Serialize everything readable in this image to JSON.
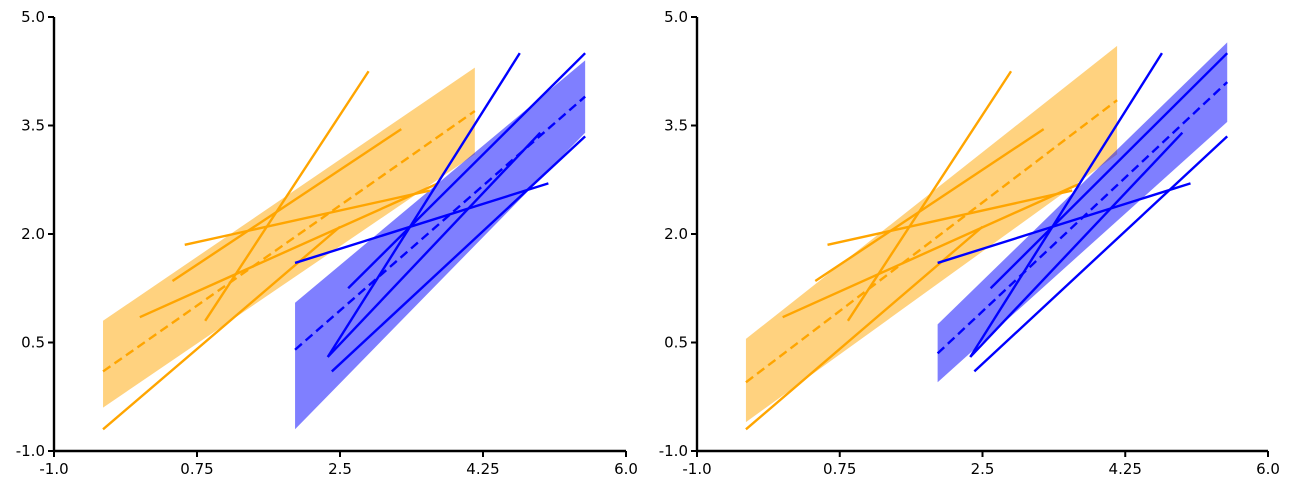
{
  "colors": {
    "orange": "#FFA500",
    "blue": "#0000FF",
    "axis": "#000000"
  },
  "chart_data": [
    {
      "type": "line",
      "title": "",
      "xlabel": "",
      "ylabel": "",
      "xlim": [
        -1.0,
        6.0
      ],
      "ylim": [
        -1.0,
        5.0
      ],
      "xticks": [
        -1.0,
        0.75,
        2.5,
        4.25,
        6.0
      ],
      "yticks": [
        -1.0,
        0.5,
        2.0,
        3.5,
        5.0
      ],
      "xtick_labels": [
        "-1.0",
        "0.75",
        "2.5",
        "4.25",
        "6.0"
      ],
      "ytick_labels": [
        "-1.0",
        "0.5",
        "2.0",
        "3.5",
        "5.0"
      ],
      "grid": false,
      "groups": [
        {
          "color": "orange",
          "band": {
            "x": [
              -0.4,
              4.15
            ],
            "upper": [
              0.8,
              4.3
            ],
            "lower": [
              -0.4,
              3.1
            ]
          },
          "mean": {
            "x": [
              -0.4,
              4.15
            ],
            "y": [
              0.1,
              3.7
            ]
          },
          "lines": [
            {
              "x": [
                -0.4,
                2.5
              ],
              "y": [
                -0.7,
                2.1
              ]
            },
            {
              "x": [
                0.05,
                3.7
              ],
              "y": [
                0.85,
                2.7
              ]
            },
            {
              "x": [
                0.45,
                3.25
              ],
              "y": [
                1.35,
                3.45
              ]
            },
            {
              "x": [
                0.6,
                3.6
              ],
              "y": [
                1.85,
                2.6
              ]
            },
            {
              "x": [
                0.85,
                2.85
              ],
              "y": [
                0.8,
                4.25
              ]
            }
          ]
        },
        {
          "color": "blue",
          "band": {
            "x": [
              1.95,
              5.5
            ],
            "upper": [
              1.05,
              4.4
            ],
            "lower": [
              -0.7,
              3.4
            ]
          },
          "mean": {
            "x": [
              1.95,
              5.5
            ],
            "y": [
              0.4,
              3.9
            ]
          },
          "lines": [
            {
              "x": [
                1.95,
                5.05
              ],
              "y": [
                1.6,
                2.7
              ]
            },
            {
              "x": [
                2.35,
                4.95
              ],
              "y": [
                0.3,
                3.4
              ]
            },
            {
              "x": [
                2.4,
                5.5
              ],
              "y": [
                0.1,
                3.35
              ]
            },
            {
              "x": [
                2.6,
                5.5
              ],
              "y": [
                1.25,
                4.5
              ]
            },
            {
              "x": [
                2.35,
                4.7
              ],
              "y": [
                0.3,
                4.5
              ]
            }
          ]
        }
      ]
    },
    {
      "type": "line",
      "title": "",
      "xlabel": "",
      "ylabel": "",
      "xlim": [
        -1.0,
        6.0
      ],
      "ylim": [
        -1.0,
        5.0
      ],
      "xticks": [
        -1.0,
        0.75,
        2.5,
        4.25,
        6.0
      ],
      "yticks": [
        -1.0,
        0.5,
        2.0,
        3.5,
        5.0
      ],
      "xtick_labels": [
        "-1.0",
        "0.75",
        "2.5",
        "4.25",
        "6.0"
      ],
      "ytick_labels": [
        "-1.0",
        "0.5",
        "2.0",
        "3.5",
        "5.0"
      ],
      "grid": false,
      "groups": [
        {
          "color": "orange",
          "band": {
            "x": [
              -0.4,
              4.15
            ],
            "upper": [
              0.55,
              4.6
            ],
            "lower": [
              -0.6,
              3.1
            ]
          },
          "mean": {
            "x": [
              -0.4,
              4.15
            ],
            "y": [
              -0.05,
              3.85
            ]
          },
          "lines": [
            {
              "x": [
                -0.4,
                2.5
              ],
              "y": [
                -0.7,
                2.1
              ]
            },
            {
              "x": [
                0.05,
                3.7
              ],
              "y": [
                0.85,
                2.7
              ]
            },
            {
              "x": [
                0.45,
                3.25
              ],
              "y": [
                1.35,
                3.45
              ]
            },
            {
              "x": [
                0.6,
                3.6
              ],
              "y": [
                1.85,
                2.6
              ]
            },
            {
              "x": [
                0.85,
                2.85
              ],
              "y": [
                0.8,
                4.25
              ]
            }
          ]
        },
        {
          "color": "blue",
          "band": {
            "x": [
              1.95,
              5.5
            ],
            "upper": [
              0.75,
              4.65
            ],
            "lower": [
              -0.05,
              3.55
            ]
          },
          "mean": {
            "x": [
              1.95,
              5.5
            ],
            "y": [
              0.35,
              4.1
            ]
          },
          "lines": [
            {
              "x": [
                1.95,
                5.05
              ],
              "y": [
                1.6,
                2.7
              ]
            },
            {
              "x": [
                2.35,
                4.95
              ],
              "y": [
                0.3,
                3.4
              ]
            },
            {
              "x": [
                2.4,
                5.5
              ],
              "y": [
                0.1,
                3.35
              ]
            },
            {
              "x": [
                2.6,
                5.5
              ],
              "y": [
                1.25,
                4.5
              ]
            },
            {
              "x": [
                2.35,
                4.7
              ],
              "y": [
                0.3,
                4.5
              ]
            }
          ]
        }
      ]
    }
  ]
}
